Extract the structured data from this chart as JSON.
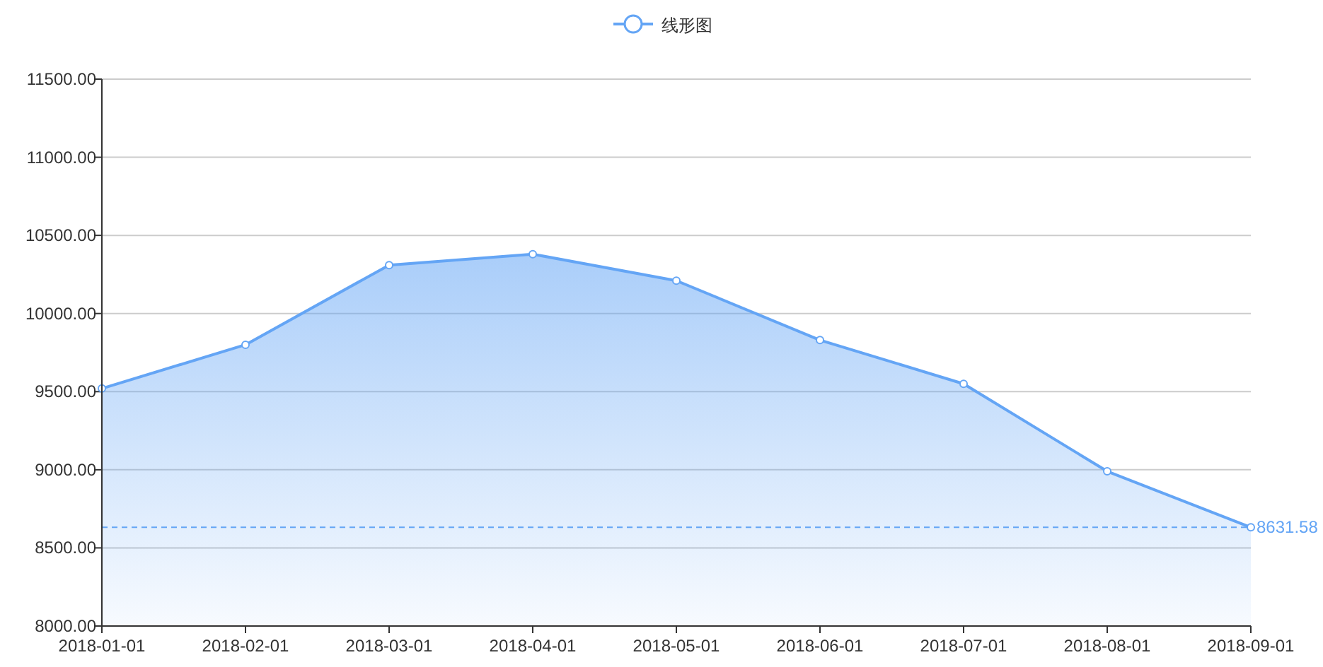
{
  "chart_data": {
    "type": "area",
    "categories": [
      "2018-01-01",
      "2018-02-01",
      "2018-03-01",
      "2018-04-01",
      "2018-05-01",
      "2018-06-01",
      "2018-07-01",
      "2018-08-01",
      "2018-09-01"
    ],
    "series": [
      {
        "name": "线形图",
        "color": "#64a5f5",
        "values": [
          9520,
          9800,
          10310,
          10380,
          10210,
          9830,
          9550,
          8990,
          8631.58
        ]
      }
    ],
    "ylim": [
      8000,
      11500
    ],
    "yticks": [
      {
        "value": 8000,
        "label": "8000.00"
      },
      {
        "value": 8500,
        "label": "8500.00"
      },
      {
        "value": 9000,
        "label": "9000.00"
      },
      {
        "value": 9500,
        "label": "9500.00"
      },
      {
        "value": 10000,
        "label": "10000.00"
      },
      {
        "value": 10500,
        "label": "10500.00"
      },
      {
        "value": 11000,
        "label": "11000.00"
      },
      {
        "value": 11500,
        "label": "11500.00"
      }
    ],
    "ref_lines": [
      {
        "axis": "y",
        "value": 8631.58,
        "label": "8631.58",
        "color": "#64a5f5",
        "line_style": "dashed"
      }
    ],
    "grid": "y",
    "legend": "top",
    "marker": "circle",
    "line_style": "solid"
  }
}
